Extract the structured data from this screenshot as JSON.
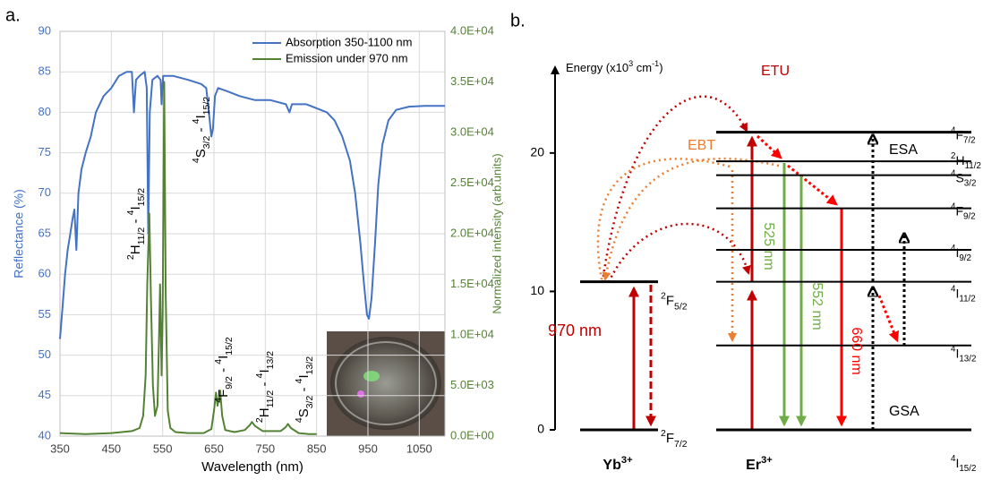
{
  "chart_data": {
    "type": "line",
    "panel_label": "a.",
    "x_label": "Wavelength (nm)",
    "y_label": "Reflectance (%)",
    "y2_label": "Normalized intensity (arb.units)",
    "xlim": [
      350,
      1100
    ],
    "xticks": [
      350,
      450,
      550,
      650,
      750,
      850,
      950,
      1050
    ],
    "ylim": [
      40,
      90
    ],
    "yticks": [
      40,
      45,
      50,
      55,
      60,
      65,
      70,
      75,
      80,
      85,
      90
    ],
    "y2lim": [
      0,
      40000
    ],
    "y2ticks": [
      {
        "value": 0,
        "label": "0.0E+00"
      },
      {
        "value": 5000,
        "label": "5.0E+03"
      },
      {
        "value": 10000,
        "label": "1.0E+04"
      },
      {
        "value": 15000,
        "label": "1.5E+04"
      },
      {
        "value": 20000,
        "label": "2.0E+04"
      },
      {
        "value": 25000,
        "label": "2.5E+04"
      },
      {
        "value": 30000,
        "label": "3.0E+04"
      },
      {
        "value": 35000,
        "label": "3.5E+04"
      },
      {
        "value": 40000,
        "label": "4.0E+04"
      }
    ],
    "grid": true,
    "legend": "upper right",
    "series": [
      {
        "name": "Absorption 350-1100 nm",
        "color": "#4472c4",
        "x": [
          350,
          355,
          360,
          365,
          370,
          375,
          378,
          382,
          386,
          392,
          400,
          410,
          420,
          435,
          450,
          465,
          480,
          490,
          494,
          498,
          505,
          515,
          519,
          522,
          525,
          530,
          540,
          546,
          548,
          551,
          560,
          570,
          600,
          625,
          635,
          640,
          645,
          648,
          652,
          658,
          680,
          700,
          730,
          760,
          790,
          797,
          802,
          810,
          830,
          850,
          870,
          885,
          900,
          915,
          925,
          935,
          942,
          948,
          952,
          957,
          964,
          970,
          978,
          990,
          1005,
          1030,
          1060,
          1100
        ],
        "values": [
          52,
          56,
          60,
          63,
          65,
          67,
          68,
          63,
          70,
          73,
          75,
          77,
          80,
          82,
          83,
          84.5,
          85,
          85,
          80,
          84,
          84.5,
          85,
          83,
          65,
          80,
          84,
          84.5,
          84,
          81,
          84.5,
          84.5,
          84.5,
          84,
          83.5,
          83,
          80,
          77,
          78,
          82,
          83,
          82.5,
          82,
          81.5,
          81.5,
          81,
          80,
          81,
          81,
          81,
          80.5,
          80,
          79,
          77,
          74,
          70,
          64,
          59,
          55,
          54.5,
          57,
          64,
          71,
          76,
          79,
          80.3,
          80.7,
          80.8,
          80.8
        ]
      },
      {
        "name": "Emission under 970 nm",
        "color": "#548235",
        "axis": "y2",
        "x": [
          350,
          400,
          450,
          490,
          505,
          512,
          517,
          520,
          524,
          527,
          531,
          535,
          540,
          543,
          545,
          548,
          550,
          553,
          556,
          560,
          565,
          575,
          600,
          630,
          645,
          650,
          654,
          657,
          662,
          666,
          672,
          690,
          710,
          720,
          724,
          730,
          745,
          780,
          790,
          794,
          800,
          815,
          835,
          850
        ],
        "values": [
          300,
          200,
          300,
          500,
          800,
          2000,
          6000,
          15000,
          22000,
          14000,
          5000,
          2000,
          3000,
          10000,
          15000,
          6000,
          12000,
          35000,
          14000,
          2500,
          800,
          400,
          300,
          300,
          700,
          2500,
          4300,
          3000,
          4500,
          2000,
          600,
          400,
          600,
          1100,
          1400,
          1000,
          500,
          500,
          900,
          1200,
          800,
          300,
          200,
          200
        ]
      }
    ],
    "annotations": [
      {
        "upper": {
          "sup": "2",
          "letter": "H",
          "sub": "11/2"
        },
        "sep": " - ",
        "lower": {
          "sup": "4",
          "letter": "I",
          "sub": "15/2"
        }
      },
      {
        "upper": {
          "sup": "4",
          "letter": "S",
          "sub": "3/2"
        },
        "sep": " - ",
        "lower": {
          "sup": "4",
          "letter": "I",
          "sub": "15/2"
        }
      },
      {
        "upper": {
          "sup": "4",
          "letter": "F",
          "sub": "9/2"
        },
        "sep": " - ",
        "lower": {
          "sup": "4",
          "letter": "I",
          "sub": "15/2"
        }
      },
      {
        "upper": {
          "sup": "2",
          "letter": "H",
          "sub": "11/2"
        },
        "sep": " - ",
        "lower": {
          "sup": "4",
          "letter": "I",
          "sub": "13/2"
        }
      },
      {
        "upper": {
          "sup": "4",
          "letter": "S",
          "sub": "3/2"
        },
        "sep": " - ",
        "lower": {
          "sup": "4",
          "letter": "I",
          "sub": "13/2"
        }
      }
    ]
  },
  "diagram": {
    "panel_label": "b.",
    "axis_label": [
      "Energy (x10",
      "3",
      " cm",
      "-1",
      ")"
    ],
    "energy_lim": [
      0,
      26.2
    ],
    "energy_ticks": [
      0,
      10,
      20
    ],
    "yb_levels": [
      {
        "sup": "2",
        "letter": "F",
        "sub": "7/2",
        "energy": 0
      },
      {
        "sup": "2",
        "letter": "F",
        "sub": "5/2",
        "energy": 10.7
      }
    ],
    "er_levels": [
      {
        "sup": "4",
        "letter": "I",
        "sub": "15/2",
        "energy": 0
      },
      {
        "sup": "4",
        "letter": "I",
        "sub": "13/2",
        "energy": 6.1
      },
      {
        "sup": "4",
        "letter": "I",
        "sub": "11/2",
        "energy": 10.7
      },
      {
        "sup": "4",
        "letter": "I",
        "sub": "9/2",
        "energy": 13.0
      },
      {
        "sup": "4",
        "letter": "F",
        "sub": "9/2",
        "energy": 16.0
      },
      {
        "sup": "4",
        "letter": "S",
        "sub": "3/2",
        "energy": 18.4
      },
      {
        "sup": "2",
        "letter": "H",
        "sub": "11/2",
        "energy": 19.4
      },
      {
        "sup": "4",
        "letter": "F",
        "sub": "7/2",
        "energy": 21.5
      }
    ],
    "ions": [
      {
        "base": "Yb",
        "sup": "3+"
      },
      {
        "base": "Er",
        "sup": "3+"
      }
    ],
    "process_labels": [
      "ETU",
      "EBT",
      "ESA",
      "GSA",
      "970 nm",
      "525 nm",
      "552 nm",
      "660 nm"
    ]
  }
}
